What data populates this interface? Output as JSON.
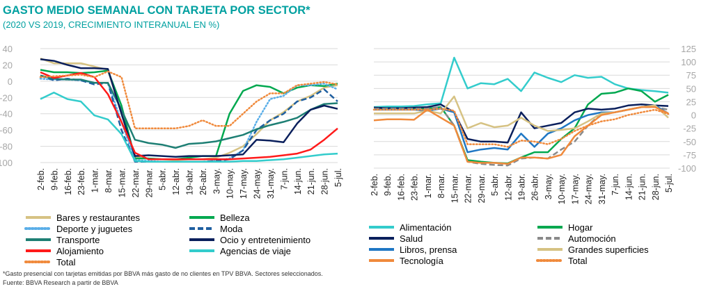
{
  "header": {
    "title": "GASTO MEDIO SEMANAL CON TARJETA POR SECTOR*",
    "subtitle": "(2020 VS 2019, CRECIMIENTO INTERANUAL EN %)"
  },
  "footer": {
    "note": "*Gasto presencial con tarjetas emitidas por BBVA más gasto de no clientes en TPV BBVA. Sectores seleccionados.",
    "source": "Fuente: BBVA Research a partir de BBVA"
  },
  "chart_data": [
    {
      "type": "line",
      "ylim": [
        -100,
        40
      ],
      "yticks": [
        40,
        20,
        0,
        -20,
        -40,
        -60,
        -80,
        -100
      ],
      "yaxis": "left",
      "grid": true,
      "legend": "bottom",
      "categories": [
        "2-feb.",
        "9-feb.",
        "16-feb.",
        "23-feb.",
        "1-mar.",
        "8-mar.",
        "15-mar.",
        "22-mar.",
        "29-mar.",
        "5-abr.",
        "12-abr.",
        "19-abr.",
        "26-abr.",
        "3-may.",
        "10-may.",
        "17-may.",
        "24-may.",
        "31-may.",
        "7-jun.",
        "14-jun.",
        "21-jun.",
        "28-jun.",
        "5-jul."
      ],
      "series": [
        {
          "name": "Bares y restaurantes",
          "color": "#d6c283",
          "style": "solid",
          "values": [
            28,
            22,
            22,
            22,
            18,
            14,
            -40,
            -93,
            -95,
            -96,
            -97,
            -96,
            -96,
            -94,
            -88,
            -80,
            -65,
            -48,
            -38,
            -25,
            -18,
            -8,
            -5
          ]
        },
        {
          "name": "Belleza",
          "color": "#00a84f",
          "style": "solid",
          "values": [
            14,
            11,
            11,
            10,
            11,
            13,
            -30,
            -95,
            -95,
            -96,
            -96,
            -94,
            -92,
            -92,
            -40,
            -12,
            -5,
            -7,
            -15,
            -8,
            -5,
            -6,
            -3
          ]
        },
        {
          "name": "Deporte y juguetes",
          "color": "#5aaee8",
          "style": "dotted",
          "values": [
            3,
            2,
            2,
            1,
            -2,
            -2,
            -50,
            -97,
            -98,
            -99,
            -99,
            -99,
            -99,
            -98,
            -95,
            -85,
            -50,
            -22,
            -18,
            -5,
            -5,
            -3,
            -10
          ]
        },
        {
          "name": "Moda",
          "color": "#1f5fa0",
          "style": "dashed",
          "values": [
            7,
            1,
            3,
            1,
            -4,
            -2,
            -60,
            -99,
            -99,
            -99,
            -99,
            -99,
            -99,
            -98,
            -96,
            -85,
            -60,
            -48,
            -40,
            -25,
            -20,
            -10,
            -25
          ]
        },
        {
          "name": "Transporte",
          "color": "#1e7f74",
          "style": "solid",
          "values": [
            7,
            3,
            2,
            2,
            -2,
            -2,
            -35,
            -72,
            -76,
            -78,
            -82,
            -77,
            -76,
            -74,
            -70,
            -66,
            -59,
            -54,
            -50,
            -45,
            -35,
            -28,
            -27
          ]
        },
        {
          "name": "Ocio y entretenimiento",
          "color": "#0a1f5c",
          "style": "solid",
          "values": [
            27,
            25,
            20,
            16,
            16,
            15,
            -40,
            -92,
            -91,
            -92,
            -93,
            -92,
            -92,
            -92,
            -91,
            -90,
            -72,
            -73,
            -75,
            -52,
            -35,
            -30,
            -34
          ]
        },
        {
          "name": "Alojamiento",
          "color": "#ff1a1a",
          "style": "solid",
          "values": [
            11,
            4,
            7,
            10,
            5,
            -16,
            -50,
            -88,
            -96,
            -96,
            -96,
            -96,
            -96,
            -96,
            -96,
            -95,
            -94,
            -93,
            -91,
            -89,
            -84,
            -72,
            -58
          ]
        },
        {
          "name": "Agencias de viaje",
          "color": "#33cccc",
          "style": "solid",
          "values": [
            -22,
            -14,
            -22,
            -25,
            -42,
            -47,
            -65,
            -98,
            -99,
            -99,
            -99,
            -99,
            -99,
            -99,
            -99,
            -98,
            -98,
            -97,
            -96,
            -94,
            -92,
            -90,
            -89
          ]
        },
        {
          "name": "Total",
          "color": "#f08a3c",
          "style": "dotted",
          "values": [
            5,
            6,
            7,
            8,
            5,
            12,
            5,
            -58,
            -58,
            -58,
            -58,
            -55,
            -48,
            -55,
            -55,
            -40,
            -25,
            -15,
            -15,
            -5,
            -3,
            -1,
            -4
          ]
        }
      ]
    },
    {
      "type": "line",
      "ylim": [
        -100,
        125
      ],
      "yticks": [
        125,
        100,
        75,
        50,
        25,
        0,
        -25,
        -50,
        -75,
        -100
      ],
      "yaxis": "right",
      "grid": true,
      "legend": "bottom",
      "categories": [
        "2-feb.",
        "9-feb.",
        "16-feb.",
        "23-feb.",
        "1-mar.",
        "8-mar.",
        "15-mar.",
        "22-mar.",
        "29-mar.",
        "5-abr.",
        "12-abr.",
        "19-abr.",
        "26-abr.",
        "3-may.",
        "10-may.",
        "17-may.",
        "24-may.",
        "31-may.",
        "7-jun.",
        "14-jun.",
        "21-jun.",
        "28-jun.",
        "5-jul."
      ],
      "series": [
        {
          "name": "Alimentación",
          "color": "#33cccc",
          "style": "solid",
          "values": [
            15,
            16,
            16,
            17,
            20,
            22,
            108,
            50,
            60,
            58,
            68,
            45,
            80,
            70,
            62,
            75,
            70,
            72,
            58,
            50,
            47,
            45,
            42
          ]
        },
        {
          "name": "Hogar",
          "color": "#00a84f",
          "style": "solid",
          "values": [
            12,
            12,
            12,
            12,
            12,
            15,
            -20,
            -85,
            -88,
            -90,
            -91,
            -80,
            -70,
            -70,
            -45,
            -25,
            20,
            40,
            42,
            50,
            45,
            25,
            38
          ]
        },
        {
          "name": "Salud",
          "color": "#0a1f5c",
          "style": "solid",
          "values": [
            14,
            13,
            13,
            14,
            15,
            20,
            5,
            -45,
            -50,
            -50,
            -52,
            5,
            -25,
            -20,
            -15,
            5,
            12,
            10,
            12,
            18,
            20,
            18,
            17
          ]
        },
        {
          "name": "Automoción",
          "color": "#8a8a8a",
          "style": "dashed",
          "values": [
            12,
            12,
            12,
            12,
            12,
            15,
            -20,
            -88,
            -92,
            -94,
            -95,
            -82,
            -80,
            -82,
            -65,
            -50,
            -20,
            3,
            5,
            10,
            15,
            15,
            10
          ]
        },
        {
          "name": "Libros, prensa",
          "color": "#1f77c4",
          "style": "solid",
          "values": [
            10,
            10,
            10,
            10,
            8,
            12,
            5,
            -70,
            -65,
            -62,
            -65,
            -35,
            -60,
            -35,
            -25,
            -10,
            0,
            5,
            5,
            10,
            15,
            18,
            3
          ]
        },
        {
          "name": "Grandes superficies",
          "color": "#d6c283",
          "style": "solid",
          "values": [
            3,
            3,
            3,
            3,
            8,
            3,
            35,
            -25,
            -15,
            -23,
            -20,
            -5,
            -20,
            -30,
            -28,
            -25,
            -12,
            3,
            5,
            10,
            15,
            18,
            -5
          ]
        },
        {
          "name": "Tecnología",
          "color": "#f08a3c",
          "style": "solid",
          "values": [
            -10,
            -8,
            -8,
            -9,
            10,
            -5,
            -20,
            -88,
            -90,
            -90,
            -92,
            -80,
            -80,
            -82,
            -75,
            -40,
            -20,
            0,
            5,
            10,
            15,
            15,
            3
          ]
        },
        {
          "name": "Total",
          "color": "#f08a3c",
          "style": "dotted",
          "values": [
            10,
            10,
            10,
            10,
            10,
            12,
            8,
            -55,
            -55,
            -55,
            -60,
            -48,
            -50,
            -55,
            -45,
            -30,
            -20,
            -12,
            -8,
            0,
            5,
            10,
            2
          ]
        }
      ]
    }
  ]
}
